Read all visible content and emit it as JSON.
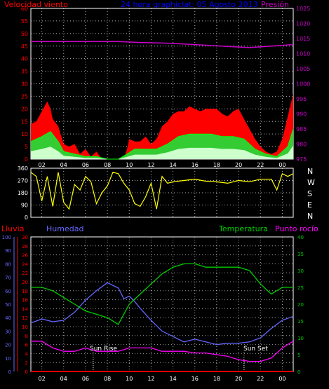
{
  "header": {
    "wind_label": "Velocidad viento",
    "title": "24 hora graphiclat: 05 Agosto 2013",
    "pressure_label": "Presión"
  },
  "lower_header": {
    "rain_label": "Lluvia",
    "humidity_label": "Humedad",
    "temperature_label": "Temperatura",
    "dewpoint_label": "Punto rocío"
  },
  "annotations": {
    "sunrise": "Sun Rise",
    "sunset": "Sun Set"
  },
  "colors": {
    "wind_gust": "#ff0000",
    "wind_avg": "#33cc33",
    "wind_min": "#ccffcc",
    "pressure": "#cc00cc",
    "direction": "#ffff00",
    "rain": "#ff0000",
    "humidity": "#6666ff",
    "temperature": "#00cc00",
    "dewpoint": "#ff00ff",
    "axis": "#ffffff",
    "title": "#0000ff"
  },
  "chart_data": [
    {
      "type": "area",
      "name": "wind-pressure",
      "x_ticks": [
        "02",
        "04",
        "06",
        "08",
        "10",
        "12",
        "14",
        "16",
        "18",
        "20",
        "22",
        "00"
      ],
      "xlim": [
        1,
        25
      ],
      "y_left": {
        "ticks": [
          "0",
          "5",
          "10",
          "15",
          "20",
          "25",
          "30",
          "35",
          "40",
          "45",
          "50",
          "55",
          "60"
        ],
        "ylim": [
          0,
          60
        ]
      },
      "y_right": {
        "ticks": [
          "975",
          "980",
          "985",
          "990",
          "995",
          "1000",
          "1005",
          "1010",
          "1015",
          "1020",
          "1025"
        ],
        "ylim": [
          975,
          1025
        ]
      },
      "series": [
        {
          "name": "gust",
          "x": [
            1.0,
            1.5,
            2.0,
            2.5,
            2.8,
            3.0,
            3.5,
            4.0,
            4.5,
            5.0,
            5.5,
            6.0,
            6.5,
            7.0,
            7.5,
            8.0,
            8.5,
            9.0,
            9.5,
            9.8,
            10.0,
            10.5,
            11.0,
            11.5,
            12.0,
            12.5,
            13.0,
            13.5,
            14.0,
            14.5,
            15.0,
            15.5,
            16.0,
            16.5,
            17.0,
            17.5,
            18.0,
            18.5,
            19.0,
            19.5,
            20.0,
            20.5,
            21.0,
            21.5,
            22.0,
            22.5,
            23.0,
            23.5,
            24.0,
            24.5,
            25.0
          ],
          "values": [
            14,
            15,
            19,
            23,
            20,
            16,
            13,
            6,
            5,
            6,
            2,
            4,
            1,
            3,
            0,
            0,
            0,
            0,
            0,
            4,
            8,
            7,
            7,
            9,
            6,
            8,
            13,
            15,
            18,
            19,
            19,
            21,
            20,
            19,
            20,
            20,
            20,
            18,
            17,
            19,
            20,
            16,
            12,
            8,
            5,
            3,
            2,
            3,
            8,
            17,
            26
          ]
        },
        {
          "name": "avg",
          "x": [
            1.0,
            2.0,
            2.8,
            3.5,
            4.0,
            5.0,
            6.0,
            7.0,
            8.0,
            9.0,
            9.8,
            10.5,
            11.5,
            12.5,
            13.5,
            14.5,
            15.5,
            16.5,
            17.5,
            18.5,
            19.5,
            20.5,
            21.5,
            22.5,
            23.5,
            24.5,
            25.0
          ],
          "values": [
            7,
            9,
            11,
            7,
            3,
            2,
            1,
            1,
            0,
            0,
            2,
            4,
            4,
            4,
            6,
            9,
            10,
            10,
            10,
            9,
            9,
            8,
            4,
            2,
            1,
            5,
            12
          ]
        },
        {
          "name": "pressure",
          "x": [
            1,
            3,
            5,
            7,
            9,
            11,
            13,
            15,
            17,
            19,
            21,
            23,
            25
          ],
          "values": [
            1014,
            1014,
            1014,
            1014,
            1014,
            1013.7,
            1013.5,
            1013.2,
            1012.8,
            1012.4,
            1012.0,
            1012.5,
            1013.0
          ]
        }
      ]
    },
    {
      "type": "line",
      "name": "wind-direction",
      "y_ticks": [
        "0",
        "90",
        "180",
        "270",
        "360"
      ],
      "ylim": [
        0,
        360
      ],
      "compass": [
        "N",
        "W",
        "S",
        "E",
        "N"
      ],
      "x": [
        1.0,
        1.5,
        2.0,
        2.5,
        3.0,
        3.5,
        4.0,
        4.5,
        5.0,
        5.5,
        6.0,
        6.5,
        7.0,
        7.5,
        8.0,
        8.5,
        9.0,
        9.5,
        10.0,
        10.5,
        11.0,
        11.5,
        12.0,
        12.5,
        13.0,
        13.5,
        14.0,
        15.0,
        16.0,
        17.0,
        18.0,
        19.0,
        20.0,
        21.0,
        22.0,
        23.0,
        23.5,
        24.0,
        24.5,
        25.0
      ],
      "values": [
        330,
        300,
        120,
        300,
        80,
        330,
        110,
        60,
        240,
        200,
        300,
        260,
        100,
        180,
        230,
        330,
        320,
        250,
        200,
        100,
        80,
        150,
        250,
        60,
        300,
        250,
        260,
        270,
        280,
        265,
        260,
        250,
        270,
        260,
        280,
        280,
        200,
        320,
        300,
        320
      ]
    },
    {
      "type": "line",
      "name": "temp-humidity",
      "x_ticks": [
        "02",
        "04",
        "06",
        "08",
        "10",
        "12",
        "14",
        "16",
        "18",
        "20",
        "22",
        "00"
      ],
      "xlim": [
        1,
        25
      ],
      "y_humidity": {
        "ticks": [
          "0",
          "10",
          "20",
          "30",
          "40",
          "50",
          "60",
          "70",
          "80",
          "90",
          "100"
        ],
        "ylim": [
          0,
          100
        ]
      },
      "y_rain": {
        "ticks": [
          "0",
          "2",
          "4",
          "6",
          "8",
          "10",
          "12",
          "14",
          "16",
          "18",
          "20",
          "22",
          "24",
          "26",
          "28",
          "30"
        ],
        "ylim": [
          0,
          30
        ]
      },
      "y_temp": {
        "ticks": [
          "0",
          "5",
          "10",
          "15",
          "20",
          "25",
          "30",
          "35",
          "40"
        ],
        "ylim": [
          0,
          40
        ]
      },
      "series": [
        {
          "name": "humidity",
          "x": [
            1,
            2,
            3,
            4,
            5,
            6,
            7,
            8,
            9,
            9.5,
            10,
            10.5,
            11,
            12,
            13,
            14,
            15,
            16,
            17,
            18,
            19,
            20,
            21,
            22,
            23,
            24,
            25
          ],
          "values": [
            36,
            39,
            37,
            38,
            44,
            53,
            60,
            66,
            62,
            54,
            56,
            52,
            47,
            38,
            30,
            26,
            22,
            24,
            22,
            20,
            21,
            21,
            22,
            25,
            32,
            38,
            41
          ]
        },
        {
          "name": "temperature",
          "x": [
            1,
            2,
            3,
            4,
            5,
            6,
            7,
            8,
            9,
            10,
            11,
            12,
            13,
            14,
            15,
            16,
            17,
            18,
            19,
            20,
            21,
            22,
            23,
            24,
            25
          ],
          "values": [
            25,
            25,
            24,
            22,
            20,
            18,
            17,
            16,
            14,
            20,
            23,
            26,
            29,
            31,
            32,
            32,
            31,
            31,
            31,
            31,
            30,
            26,
            23,
            25,
            25
          ]
        },
        {
          "name": "dewpoint",
          "x": [
            1,
            2,
            3,
            4,
            5,
            6,
            7,
            8,
            9,
            10,
            11,
            12,
            13,
            14,
            15,
            16,
            17,
            18,
            19,
            20,
            21,
            22,
            23,
            24,
            25
          ],
          "values": [
            9,
            9,
            7,
            6,
            6,
            7,
            6,
            6,
            6,
            7,
            7,
            7,
            6,
            6,
            6,
            5.5,
            5.5,
            5,
            4.5,
            3.5,
            3,
            3,
            4,
            7,
            9
          ]
        },
        {
          "name": "rain",
          "x": [
            1,
            25
          ],
          "values": [
            0,
            0
          ]
        }
      ],
      "sunrise_x": 6.7,
      "sunset_x": 20.5
    }
  ]
}
